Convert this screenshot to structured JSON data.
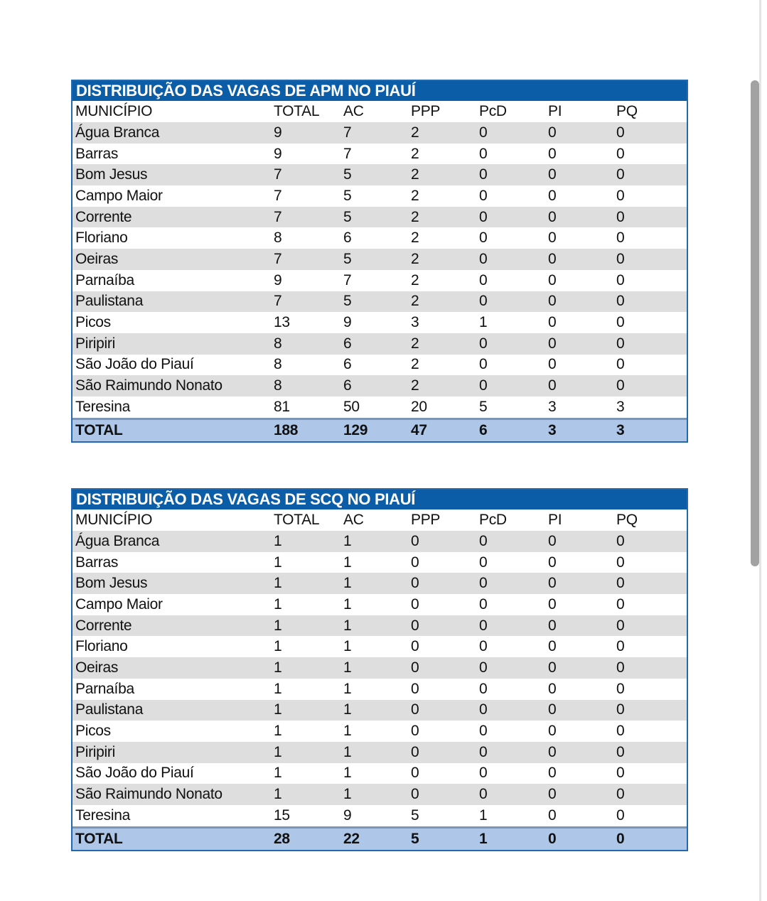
{
  "colors": {
    "title_bar_blue": "#0b5da8",
    "table_border_blue": "#2468ae",
    "stripe_gray": "#dedede",
    "total_row_blue": "#aec6e8",
    "total_top_border": "#7c94b5",
    "scroll_thumb": "#a2a2a2",
    "scroll_track": "#e5e5e5",
    "title_text": "#ffffff",
    "text": "#111111"
  },
  "tables": [
    {
      "title": "DISTRIBUIÇÃO DAS VAGAS DE APM NO PIAUÍ",
      "columns": [
        "MUNICÍPIO",
        "TOTAL",
        "AC",
        "PPP",
        "PcD",
        "PI",
        "PQ"
      ],
      "rows": [
        [
          "Água Branca",
          9,
          7,
          2,
          0,
          0,
          0
        ],
        [
          "Barras",
          9,
          7,
          2,
          0,
          0,
          0
        ],
        [
          "Bom Jesus",
          7,
          5,
          2,
          0,
          0,
          0
        ],
        [
          "Campo Maior",
          7,
          5,
          2,
          0,
          0,
          0
        ],
        [
          "Corrente",
          7,
          5,
          2,
          0,
          0,
          0
        ],
        [
          "Floriano",
          8,
          6,
          2,
          0,
          0,
          0
        ],
        [
          "Oeiras",
          7,
          5,
          2,
          0,
          0,
          0
        ],
        [
          "Parnaíba",
          9,
          7,
          2,
          0,
          0,
          0
        ],
        [
          "Paulistana",
          7,
          5,
          2,
          0,
          0,
          0
        ],
        [
          "Picos",
          13,
          9,
          3,
          1,
          0,
          0
        ],
        [
          "Piripiri",
          8,
          6,
          2,
          0,
          0,
          0
        ],
        [
          "São João do Piauí",
          8,
          6,
          2,
          0,
          0,
          0
        ],
        [
          "São Raimundo Nonato",
          8,
          6,
          2,
          0,
          0,
          0
        ],
        [
          "Teresina",
          81,
          50,
          20,
          5,
          3,
          3
        ]
      ],
      "total_row": [
        "TOTAL",
        188,
        129,
        47,
        6,
        3,
        3
      ]
    },
    {
      "title": "DISTRIBUIÇÃO DAS VAGAS DE SCQ NO PIAUÍ",
      "columns": [
        "MUNICÍPIO",
        "TOTAL",
        "AC",
        "PPP",
        "PcD",
        "PI",
        "PQ"
      ],
      "rows": [
        [
          "Água Branca",
          1,
          1,
          0,
          0,
          0,
          0
        ],
        [
          "Barras",
          1,
          1,
          0,
          0,
          0,
          0
        ],
        [
          "Bom Jesus",
          1,
          1,
          0,
          0,
          0,
          0
        ],
        [
          "Campo Maior",
          1,
          1,
          0,
          0,
          0,
          0
        ],
        [
          "Corrente",
          1,
          1,
          0,
          0,
          0,
          0
        ],
        [
          "Floriano",
          1,
          1,
          0,
          0,
          0,
          0
        ],
        [
          "Oeiras",
          1,
          1,
          0,
          0,
          0,
          0
        ],
        [
          "Parnaíba",
          1,
          1,
          0,
          0,
          0,
          0
        ],
        [
          "Paulistana",
          1,
          1,
          0,
          0,
          0,
          0
        ],
        [
          "Picos",
          1,
          1,
          0,
          0,
          0,
          0
        ],
        [
          "Piripiri",
          1,
          1,
          0,
          0,
          0,
          0
        ],
        [
          "São João do Piauí",
          1,
          1,
          0,
          0,
          0,
          0
        ],
        [
          "São Raimundo Nonato",
          1,
          1,
          0,
          0,
          0,
          0
        ],
        [
          "Teresina",
          15,
          9,
          5,
          1,
          0,
          0
        ]
      ],
      "total_row": [
        "TOTAL",
        28,
        22,
        5,
        1,
        0,
        0
      ]
    }
  ]
}
